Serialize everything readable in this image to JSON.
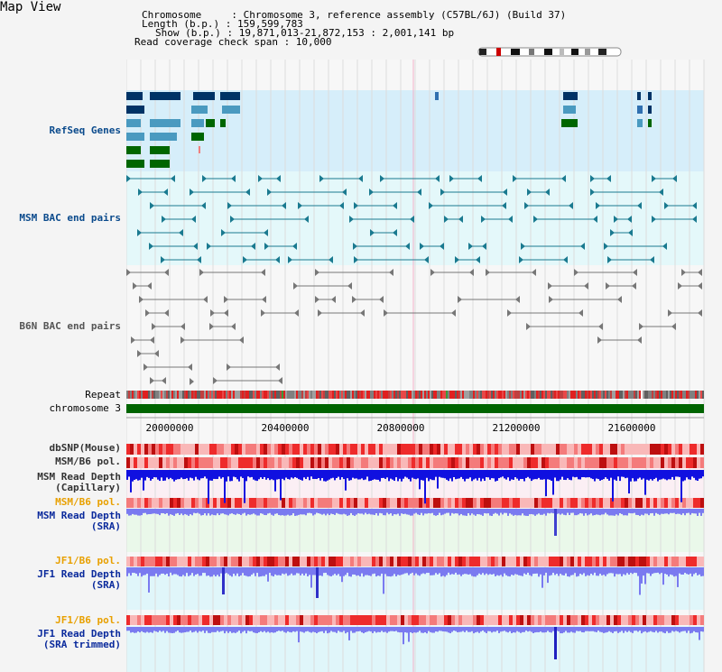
{
  "title": "Map View",
  "header": {
    "chromosome_line": "Chromosome     : Chromosome 3, reference assembly (C57BL/6J) (Build 37)",
    "length_line": "Length (b.p.) : 159,599,783",
    "show_line": "Show (b.p.) : 19,871,013-21,872,153 : 2,001,141 bp",
    "coverage_line": "Read coverage check span : 10,000"
  },
  "tracks": {
    "refseq": "RefSeq Genes",
    "msm_bac": "MSM BAC end pairs",
    "b6n_bac": "B6N BAC end pairs",
    "repeat": "Repeat",
    "chromosome": "chromosome 3",
    "dbsnp": "dbSNP(Mouse)",
    "msm_b6_pol_1": "MSM/B6 pol.",
    "msm_read_depth_cap_1": "MSM Read Depth",
    "msm_read_depth_cap_2": "(Capillary)",
    "msm_b6_pol_2": "MSM/B6 pol.",
    "msm_read_depth_sra_1": "MSM Read Depth",
    "msm_read_depth_sra_2": "(SRA)",
    "jf1_b6_pol_1": "JF1/B6 pol.",
    "jf1_read_depth_1": "JF1 Read Depth",
    "jf1_read_depth_2": "(SRA)",
    "jf1_b6_pol_2": "JF1/B6 pol.",
    "jf1_read_depth_trim_1": "JF1 Read Depth",
    "jf1_read_depth_trim_2": "(SRA trimmed)"
  },
  "axis_ticks": [
    "20000000",
    "20400000",
    "20800000",
    "21200000",
    "21600000"
  ],
  "colors": {
    "refseq_bg": "#d6eefa",
    "msm_bg": "#e4f8fa",
    "label_blue": "#0a4a8c",
    "label_orange": "#e8a000",
    "chromosome_green": "#006400",
    "depth_blue": "#1010e0",
    "depth_light": "#7a7af0"
  }
}
